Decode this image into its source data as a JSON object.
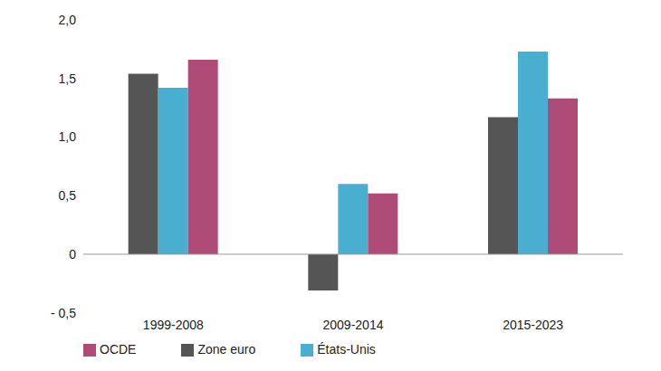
{
  "chart_data": {
    "type": "bar",
    "categories": [
      "1999-2008",
      "2009-2014",
      "2015-2023"
    ],
    "series": [
      {
        "name": "Zone euro",
        "color": "#555555",
        "values": [
          1.54,
          -0.31,
          1.17
        ]
      },
      {
        "name": "États-Unis",
        "color": "#4aaed0",
        "values": [
          1.42,
          0.6,
          1.73
        ]
      },
      {
        "name": "OCDE",
        "color": "#ae4b77",
        "values": [
          1.66,
          0.52,
          1.33
        ]
      }
    ],
    "ylim": [
      -0.5,
      2.0
    ],
    "yticks": [
      {
        "value": -0.5,
        "label": "- 0,5"
      },
      0,
      {
        "value": 0.5,
        "label": "0,5"
      },
      {
        "value": 1.0,
        "label": "1,0"
      },
      {
        "value": 1.5,
        "label": "1,5"
      },
      {
        "value": 2.0,
        "label": "2,0"
      }
    ],
    "grid": false,
    "legend": "bottom-left"
  }
}
